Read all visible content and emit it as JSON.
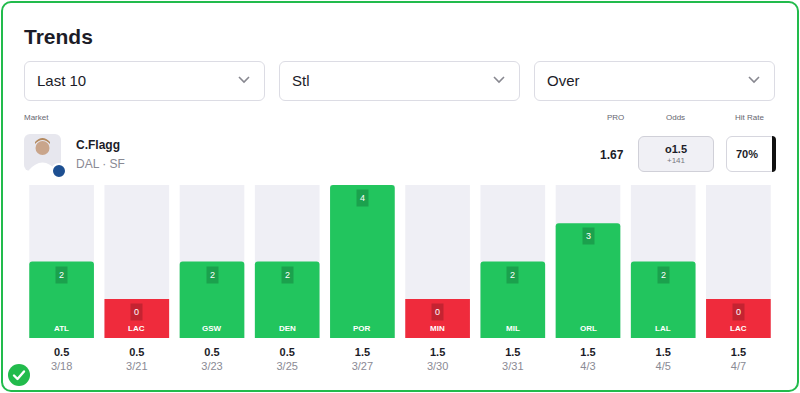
{
  "header": {
    "title": "Trends",
    "filters": [
      "Last 10",
      "Stl",
      "Over"
    ]
  },
  "columns": {
    "market": "Market",
    "pro": "PRO",
    "odds": "Odds",
    "hit_rate": "Hit Rate"
  },
  "player": {
    "name": "C.Flagg",
    "team": "DAL · SF",
    "pro": "1.67",
    "odds_line": "o1.5",
    "odds_price": "+141",
    "hit_rate": "70%"
  },
  "chart_data": {
    "type": "bar",
    "categories": [
      "ATL",
      "LAC",
      "GSW",
      "DEN",
      "POR",
      "MIN",
      "MIL",
      "ORL",
      "LAL",
      "LAC"
    ],
    "values": [
      2,
      0,
      2,
      2,
      4,
      0,
      2,
      3,
      2,
      0
    ],
    "lines": [
      0.5,
      0.5,
      0.5,
      0.5,
      1.5,
      1.5,
      1.5,
      1.5,
      1.5,
      1.5
    ],
    "dates": [
      "3/18",
      "3/21",
      "3/23",
      "3/25",
      "3/27",
      "3/30",
      "3/31",
      "4/3",
      "4/5",
      "4/7"
    ],
    "colors": [
      "#22c55e",
      "#ef2b3c",
      "#22c55e",
      "#22c55e",
      "#22c55e",
      "#ef2b3c",
      "#22c55e",
      "#22c55e",
      "#22c55e",
      "#ef2b3c"
    ],
    "ylim": [
      0,
      4
    ],
    "grid": false,
    "data_labels": true,
    "tick_labels": "x"
  }
}
